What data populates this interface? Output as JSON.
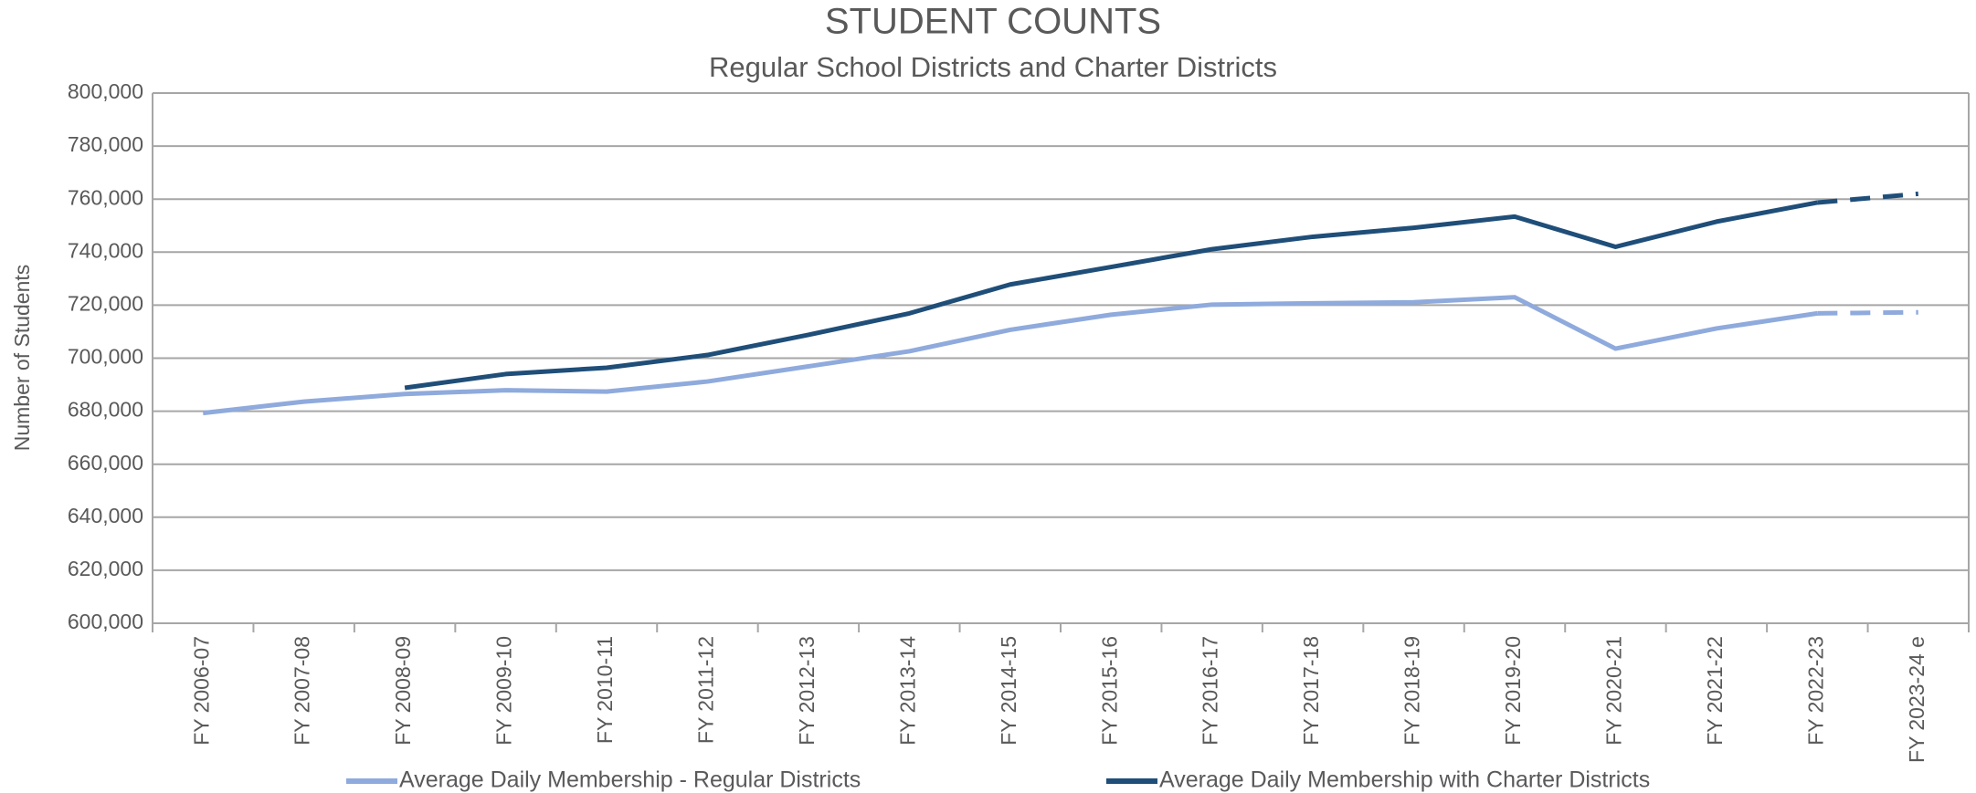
{
  "chart_data": {
    "type": "line",
    "title": "STUDENT COUNTS",
    "subtitle": "Regular School Districts and Charter Districts",
    "y_axis_label": "Number of Students",
    "categories": [
      "FY 2006-07",
      "FY 2007-08",
      "FY 2008-09",
      "FY 2009-10",
      "FY 2010-11",
      "FY 2011-12",
      "FY 2012-13",
      "FY 2013-14",
      "FY 2014-15",
      "FY 2015-16",
      "FY 2016-17",
      "FY 2017-18",
      "FY 2018-19",
      "FY 2019-20",
      "FY 2020-21",
      "FY 2021-22",
      "FY 2022-23",
      "FY 2023-24 e"
    ],
    "series": [
      {
        "name": "Average Daily Membership - Regular Districts",
        "color": "#8faadc",
        "values": [
          679300,
          683600,
          686500,
          687900,
          687400,
          691200,
          696900,
          702600,
          710700,
          716400,
          720200,
          720700,
          721100,
          723000,
          703600,
          711200,
          716900,
          717300
        ]
      },
      {
        "name": "Average Daily Membership with Charter Districts",
        "color": "#1f4e79",
        "values": [
          null,
          null,
          688800,
          694000,
          696400,
          701200,
          708800,
          716900,
          727800,
          734400,
          741100,
          745800,
          749200,
          753400,
          742000,
          751500,
          758700,
          762000
        ]
      }
    ],
    "dashed_last_segment": true,
    "ylim": [
      600000,
      800000
    ],
    "yticks": [
      {
        "value": 600000,
        "label": "600,000"
      },
      {
        "value": 620000,
        "label": "620,000"
      },
      {
        "value": 640000,
        "label": "640,000"
      },
      {
        "value": 660000,
        "label": "660,000"
      },
      {
        "value": 680000,
        "label": "680,000"
      },
      {
        "value": 700000,
        "label": "700,000"
      },
      {
        "value": 720000,
        "label": "720,000"
      },
      {
        "value": 740000,
        "label": "740,000"
      },
      {
        "value": 760000,
        "label": "760,000"
      },
      {
        "value": 780000,
        "label": "780,000"
      },
      {
        "value": 800000,
        "label": "800,000"
      }
    ],
    "grid": true,
    "legend": "bottom"
  }
}
